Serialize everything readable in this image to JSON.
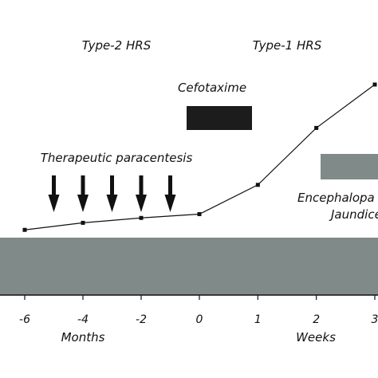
{
  "chart_data": {
    "type": "line",
    "x_ticks": [
      "-6",
      "-4",
      "-2",
      "0",
      "1",
      "2",
      "3"
    ],
    "x_groups": [
      {
        "label": "Months",
        "ticks": [
          "-6",
          "-4",
          "-2",
          "0"
        ]
      },
      {
        "label": "Weeks",
        "ticks": [
          "1",
          "2",
          "3"
        ]
      }
    ],
    "series": [
      {
        "points": [
          {
            "x": "-6",
            "y": 0.7
          },
          {
            "x": "-4",
            "y": 2.0
          },
          {
            "x": "-2",
            "y": 2.9
          },
          {
            "x": "0",
            "y": 3.6
          },
          {
            "x": "1",
            "y": 9.0
          },
          {
            "x": "2",
            "y": 19.5
          },
          {
            "x": "3",
            "y": 27.5
          }
        ]
      }
    ],
    "phase_labels": [
      "Type-2 HRS",
      "Type-1 HRS"
    ],
    "annotations": {
      "cefotaxime": "Cefotaxime",
      "paracentesis": "Therapeutic paracentesis",
      "encephalopathy": "Encephalopa",
      "jaundice": "Jaundice"
    },
    "paracentesis_times": [
      "-5",
      "-4",
      "-3",
      "-2",
      "-1"
    ],
    "colors": {
      "line": "#111111",
      "cefotaxime_bar": "#1c1c1c",
      "grey_bar": "#7f8a89",
      "arrow": "#111111"
    }
  }
}
